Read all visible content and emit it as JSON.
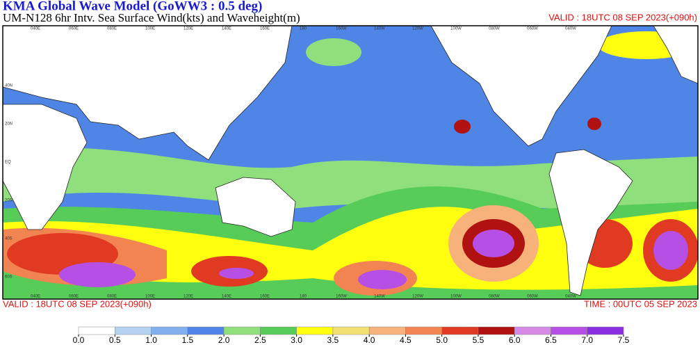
{
  "header": {
    "title": "KMA  Global Wave Model (GoWW3 : 0.5 deg)",
    "subtitle": "UM-N128  6hr Intv. Sea Surface Wind(kts) and Waveheight(m)",
    "valid": "VALID : 18UTC 08 SEP 2023(+090h)"
  },
  "map": {
    "lon_labels": [
      "040E",
      "060E",
      "080E",
      "100E",
      "120E",
      "140E",
      "160E",
      "180",
      "160W",
      "140W",
      "120W",
      "100W",
      "080W",
      "060W",
      "040W"
    ],
    "lat_labels": [
      "40N",
      "20N",
      "EQ",
      "20S",
      "40S",
      "60S"
    ]
  },
  "footer": {
    "valid": "VALID : 18UTC 08 SEP 2023(+090h)",
    "time": "TIME : 00UTC 05 SEP 2023"
  },
  "colorbar": {
    "ticks": [
      {
        "value": 0,
        "label": "0.0"
      },
      {
        "value": 0.5,
        "label": "0.5"
      },
      {
        "value": 1,
        "label": "1.0"
      },
      {
        "value": 1.5,
        "label": "1.5"
      },
      {
        "value": 2,
        "label": "2.0"
      },
      {
        "value": 2.5,
        "label": "2.5"
      },
      {
        "value": 3,
        "label": "3.0"
      },
      {
        "value": 3.5,
        "label": "3.5"
      },
      {
        "value": 4,
        "label": "4.0"
      },
      {
        "value": 4.5,
        "label": "4.5"
      },
      {
        "value": 5,
        "label": "5.0"
      },
      {
        "value": 5.5,
        "label": "5.5"
      },
      {
        "value": 6,
        "label": "6.0"
      },
      {
        "value": 6.5,
        "label": "6.5"
      },
      {
        "value": 7,
        "label": "7.0"
      },
      {
        "value": 7.5,
        "label": "7.5"
      }
    ],
    "colors": [
      "#ffffff",
      "#b4d2f2",
      "#82b0ee",
      "#4f86e6",
      "#8fe07c",
      "#58cc58",
      "#ffff10",
      "#f2e070",
      "#f6b27a",
      "#f28452",
      "#e03a22",
      "#b01212",
      "#d68ae6",
      "#b650e4",
      "#8a2ee2"
    ]
  }
}
